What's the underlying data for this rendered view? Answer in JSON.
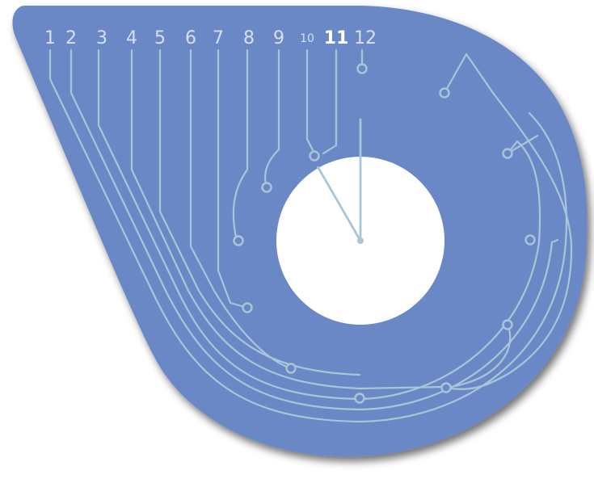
{
  "clock": {
    "numerals": [
      "1",
      "2",
      "3",
      "4",
      "5",
      "6",
      "7",
      "8",
      "9",
      "10",
      "11",
      "12"
    ],
    "highlighted_numeral": "11",
    "time": {
      "hour": 11,
      "minute": 0
    },
    "colors": {
      "face": "#6a88c6",
      "face_shadow": "#3a4466",
      "numerals": "#d7e0ef",
      "highlight": "#ffffff",
      "traces": "#a9c6d6",
      "center_hole": "#ffffff"
    },
    "icons": [
      "circuit-trace",
      "connection-node",
      "clock-hand"
    ]
  }
}
